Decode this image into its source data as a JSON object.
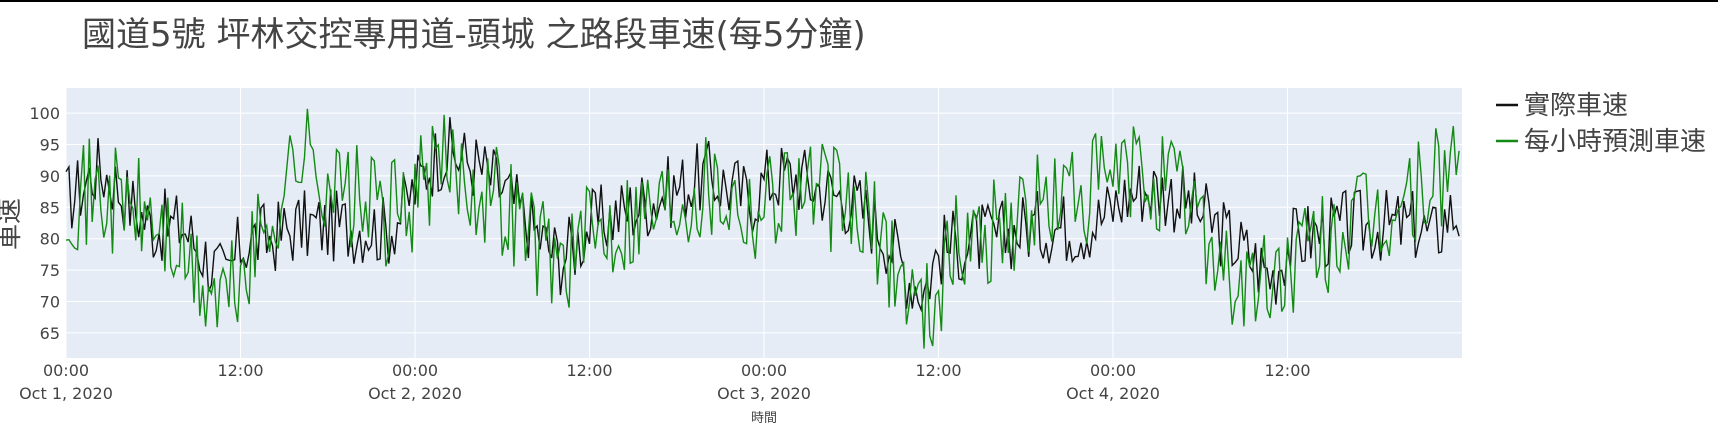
{
  "chart_data": {
    "type": "line",
    "title": "國道5號 坪林交控專用道-頭城 之路段車速(每5分鐘)",
    "xlabel": "時間",
    "ylabel": "車速",
    "x_range": [
      "2020-10-01 00:00",
      "2020-10-04 23:59"
    ],
    "ylim": [
      61,
      104
    ],
    "y_ticks": [
      65,
      70,
      75,
      80,
      85,
      90,
      95,
      100
    ],
    "x_ticks": [
      {
        "time": "00:00",
        "date": "Oct 1, 2020"
      },
      {
        "time": "12:00",
        "date": ""
      },
      {
        "time": "00:00",
        "date": "Oct 2, 2020"
      },
      {
        "time": "12:00",
        "date": ""
      },
      {
        "time": "00:00",
        "date": "Oct 3, 2020"
      },
      {
        "time": "12:00",
        "date": ""
      },
      {
        "time": "00:00",
        "date": "Oct 4, 2020"
      },
      {
        "time": "12:00",
        "date": ""
      }
    ],
    "grid": true,
    "legend_position": "right",
    "plot_bg": "#e5ecf6",
    "series": [
      {
        "name": "實際車速",
        "color": "#111111",
        "hours": [
          0,
          1,
          2,
          3,
          4,
          5,
          6,
          7,
          8,
          9,
          10,
          11,
          12,
          13,
          14,
          15,
          16,
          17,
          18,
          19,
          20,
          21,
          22,
          23,
          24,
          25,
          26,
          27,
          28,
          29,
          30,
          31,
          32,
          33,
          34,
          35,
          36,
          37,
          38,
          39,
          40,
          41,
          42,
          43,
          44,
          45,
          46,
          47,
          48,
          49,
          50,
          51,
          52,
          53,
          54,
          55,
          56,
          57,
          58,
          59,
          60,
          61,
          62,
          63,
          64,
          65,
          66,
          67,
          68,
          69,
          70,
          71,
          72,
          73,
          74,
          75,
          76,
          77,
          78,
          79,
          80,
          81,
          82,
          83,
          84,
          85,
          86,
          87,
          88,
          89,
          90,
          91,
          92,
          93,
          94,
          95,
          96
        ],
        "values": [
          86,
          88,
          91,
          90,
          87,
          84,
          82,
          82,
          82,
          79,
          76,
          73,
          79,
          80,
          80,
          81,
          82,
          82,
          82,
          82,
          82,
          82,
          81,
          84,
          88,
          92,
          94,
          93,
          92,
          90,
          88,
          85,
          82,
          79,
          77,
          79,
          82,
          83,
          84,
          85,
          86,
          87,
          88,
          89,
          90,
          89,
          88,
          86,
          89,
          90,
          90,
          89,
          88,
          87,
          86,
          84,
          82,
          78,
          74,
          72,
          78,
          79,
          79,
          80,
          80,
          81,
          82,
          82,
          82,
          82,
          82,
          83,
          85,
          87,
          88,
          88,
          87,
          86,
          84,
          82,
          80,
          78,
          76,
          74,
          79,
          80,
          81,
          81,
          82,
          82,
          82,
          82,
          82,
          82,
          80,
          84,
          84
        ]
      },
      {
        "name": "每小時預測車速",
        "color": "#138a13",
        "hours": [
          0,
          1,
          2,
          3,
          4,
          5,
          6,
          7,
          8,
          9,
          10,
          11,
          12,
          13,
          14,
          15,
          16,
          17,
          18,
          19,
          20,
          21,
          22,
          23,
          24,
          25,
          26,
          27,
          28,
          29,
          30,
          31,
          32,
          33,
          34,
          35,
          36,
          37,
          38,
          39,
          40,
          41,
          42,
          43,
          44,
          45,
          46,
          47,
          48,
          49,
          50,
          51,
          52,
          53,
          54,
          55,
          56,
          57,
          58,
          59,
          60,
          61,
          62,
          63,
          64,
          65,
          66,
          67,
          68,
          69,
          70,
          71,
          72,
          73,
          74,
          75,
          76,
          77,
          78,
          79,
          80,
          81,
          82,
          83,
          84,
          85,
          86,
          87,
          88,
          89,
          90,
          91,
          92,
          93,
          94,
          95,
          96
        ],
        "values": [
          88,
          87,
          87,
          86,
          86,
          84,
          83,
          80,
          77,
          73,
          71,
          70,
          74,
          78,
          83,
          88,
          94,
          92,
          90,
          87,
          86,
          85,
          84,
          84,
          87,
          90,
          91,
          91,
          89,
          88,
          86,
          84,
          81,
          78,
          77,
          78,
          80,
          82,
          83,
          84,
          85,
          86,
          87,
          88,
          89,
          88,
          87,
          85,
          86,
          88,
          89,
          88,
          87,
          86,
          84,
          82,
          80,
          76,
          72,
          68,
          73,
          78,
          80,
          81,
          82,
          83,
          84,
          85,
          86,
          87,
          87,
          88,
          89,
          90,
          90,
          89,
          88,
          86,
          84,
          78,
          74,
          72,
          72,
          73,
          75,
          77,
          78,
          80,
          81,
          82,
          82,
          83,
          85,
          87,
          89,
          91,
          94
        ]
      }
    ]
  }
}
